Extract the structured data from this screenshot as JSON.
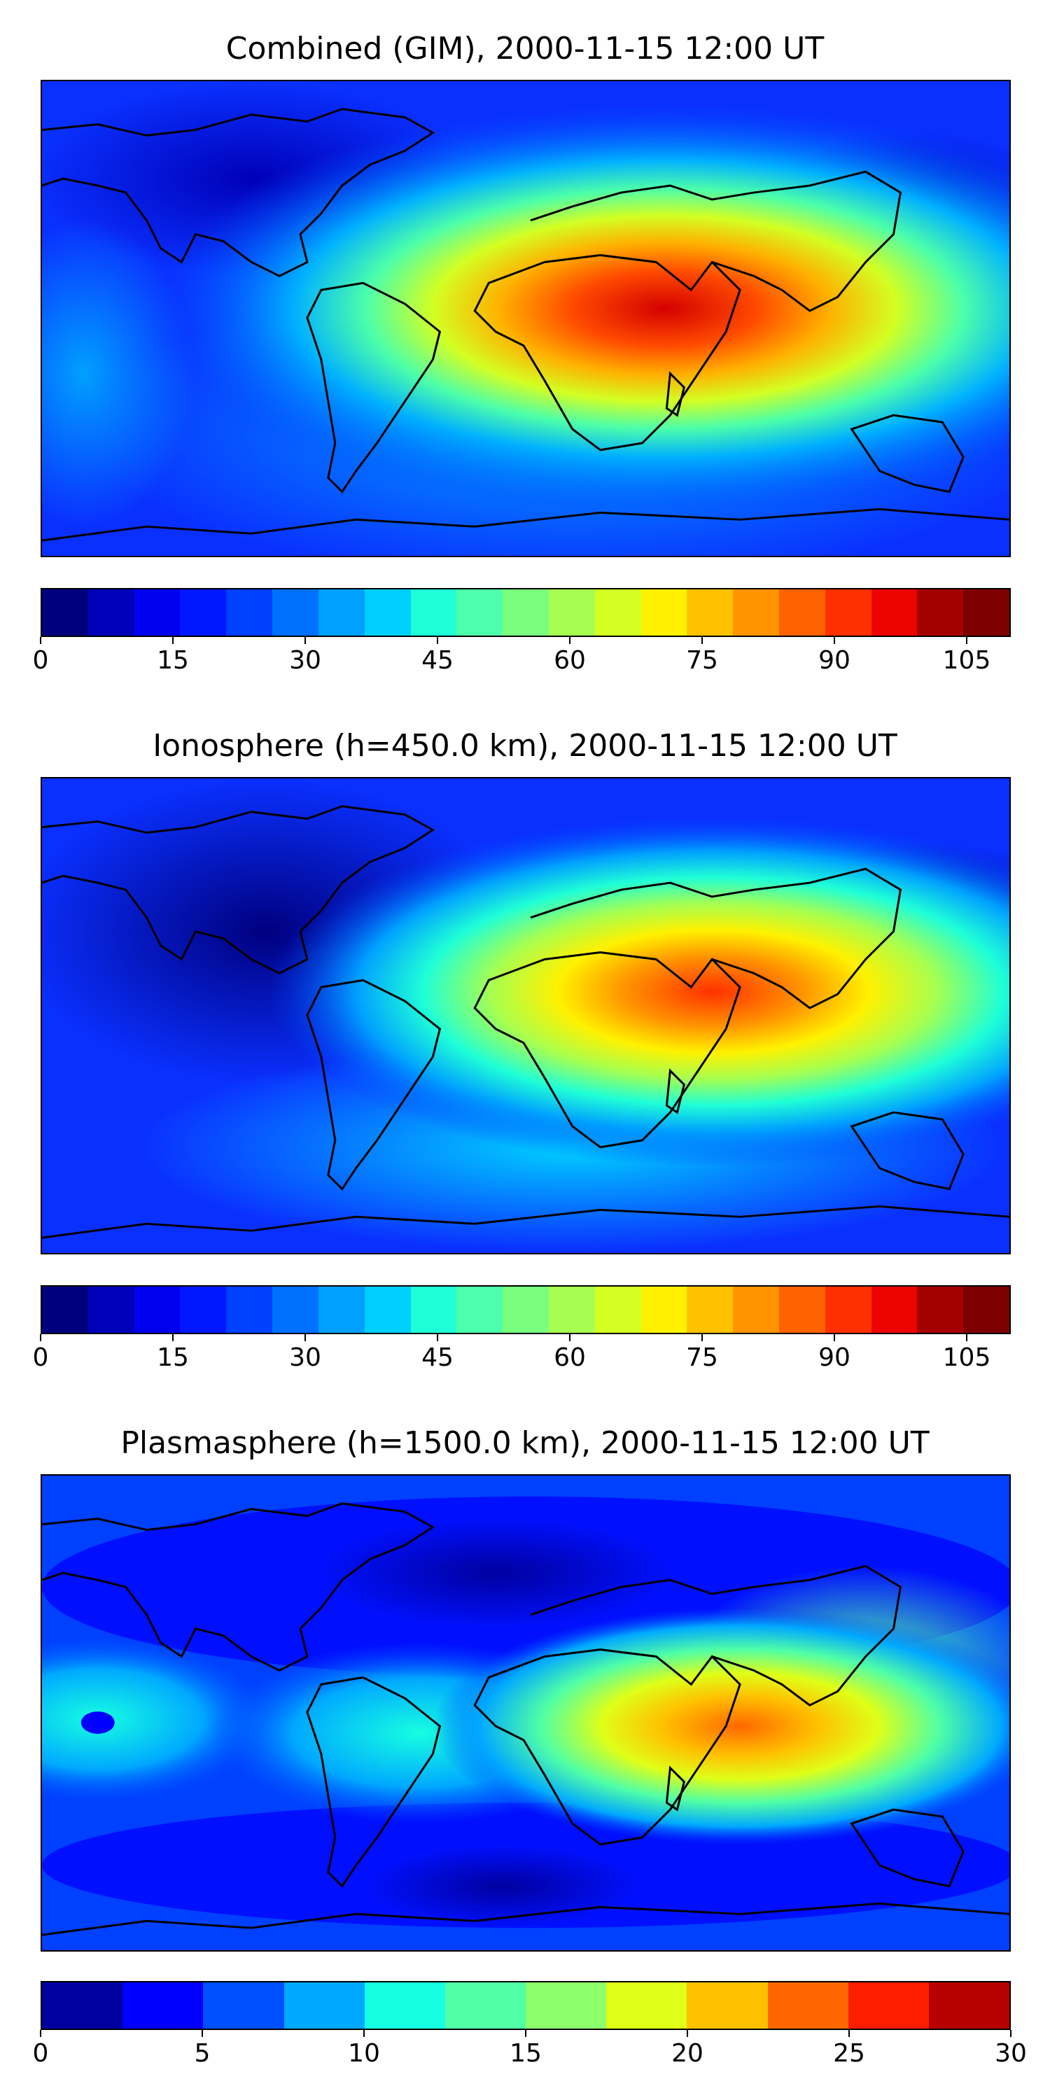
{
  "panels": [
    {
      "title": "Combined (GIM), 2000-11-15 12:00 UT",
      "colorbar": {
        "min": 0,
        "max": 110,
        "colors": [
          "#00007f",
          "#0000b8",
          "#0000ef",
          "#0018ff",
          "#0040ff",
          "#0070ff",
          "#00a0ff",
          "#00d0ff",
          "#1fffd7",
          "#4cffaa",
          "#79ff7d",
          "#a6ff50",
          "#d3ff23",
          "#fff100",
          "#ffc100",
          "#ff9400",
          "#ff6200",
          "#ff3000",
          "#ed0400",
          "#a50000",
          "#7f0000"
        ],
        "ticks": [
          "0",
          "15",
          "30",
          "45",
          "60",
          "75",
          "90",
          "105"
        ],
        "tick_values": [
          0,
          15,
          30,
          45,
          60,
          75,
          90,
          105
        ]
      }
    },
    {
      "title": "Ionosphere  (h=450.0 km), 2000-11-15 12:00 UT",
      "colorbar": {
        "min": 0,
        "max": 110,
        "colors": [
          "#00007f",
          "#0000b8",
          "#0000ef",
          "#0018ff",
          "#0040ff",
          "#0070ff",
          "#00a0ff",
          "#00d0ff",
          "#1fffd7",
          "#4cffaa",
          "#79ff7d",
          "#a6ff50",
          "#d3ff23",
          "#fff100",
          "#ffc100",
          "#ff9400",
          "#ff6200",
          "#ff3000",
          "#ed0400",
          "#a50000",
          "#7f0000"
        ],
        "ticks": [
          "0",
          "15",
          "30",
          "45",
          "60",
          "75",
          "90",
          "105"
        ],
        "tick_values": [
          0,
          15,
          30,
          45,
          60,
          75,
          90,
          105
        ]
      }
    },
    {
      "title": "Plasmasphere (h=1500.0 km), 2000-11-15 12:00 UT",
      "colorbar": {
        "min": 0,
        "max": 30,
        "colors": [
          "#00009f",
          "#0000ff",
          "#0050ff",
          "#00a8ff",
          "#16ffe1",
          "#50ffa6",
          "#8dff6a",
          "#dfff18",
          "#ffc000",
          "#ff6800",
          "#ff1d00",
          "#b60000"
        ],
        "ticks": [
          "0",
          "5",
          "10",
          "15",
          "20",
          "25",
          "30"
        ],
        "tick_values": [
          0,
          5,
          10,
          15,
          20,
          25,
          30
        ]
      }
    }
  ],
  "map_style": {
    "ocean_base": "#0a2cff",
    "coastline_color": "#000000"
  }
}
